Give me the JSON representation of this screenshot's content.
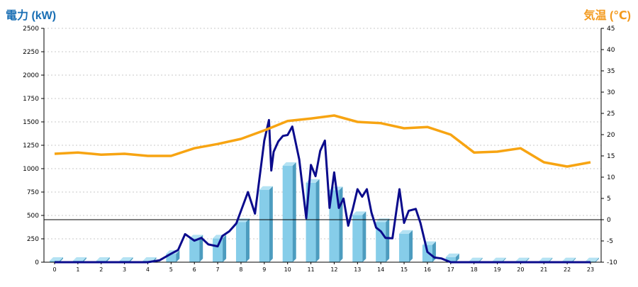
{
  "chart_data": {
    "type": "bar",
    "y_left_label": "電力 (kW)",
    "y_right_label": "気温 (℃)",
    "categories": [
      "0",
      "1",
      "2",
      "3",
      "4",
      "5",
      "6",
      "7",
      "8",
      "9",
      "10",
      "11",
      "12",
      "13",
      "14",
      "15",
      "16",
      "17",
      "18",
      "19",
      "20",
      "21",
      "22",
      "23"
    ],
    "ylim_left": [
      0,
      2500
    ],
    "yticks_left": [
      "0",
      "250",
      "500",
      "750",
      "1000",
      "1250",
      "1500",
      "1750",
      "2000",
      "2250",
      "2500"
    ],
    "ylim_right": [
      -10,
      45
    ],
    "yticks_right": [
      "-10",
      "-5",
      "0",
      "5",
      "10",
      "15",
      "20",
      "25",
      "30",
      "35",
      "40",
      "45"
    ],
    "reference_line_right": 0,
    "grid": "horizontal dotted",
    "series": [
      {
        "kind": "bar",
        "color": "#86cde9",
        "values": [
          15,
          15,
          15,
          15,
          15,
          90,
          255,
          255,
          430,
          775,
          1030,
          850,
          770,
          505,
          430,
          305,
          185,
          55,
          10,
          10,
          10,
          10,
          10,
          10
        ]
      },
      {
        "kind": "line",
        "axis": "left",
        "color": "#0b0b8c",
        "x": [
          0,
          1,
          2,
          3,
          4,
          4.5,
          5,
          5.3,
          5.6,
          6,
          6.3,
          6.6,
          7,
          7.2,
          7.5,
          7.8,
          8,
          8.3,
          8.6,
          9,
          9.2,
          9.3,
          9.4,
          9.6,
          9.8,
          10,
          10.2,
          10.5,
          10.8,
          11,
          11.2,
          11.4,
          11.6,
          11.8,
          12,
          12.2,
          12.4,
          12.6,
          12.8,
          13,
          13.2,
          13.4,
          13.6,
          13.8,
          14,
          14.2,
          14.5,
          14.8,
          15,
          15.2,
          15.5,
          15.7,
          16,
          16.3,
          16.6,
          17,
          17.5,
          18,
          19,
          20,
          21,
          22,
          23
        ],
        "values": [
          0,
          0,
          0,
          0,
          0,
          20,
          90,
          130,
          300,
          230,
          260,
          190,
          170,
          280,
          330,
          415,
          550,
          750,
          520,
          1300,
          1520,
          980,
          1180,
          1290,
          1350,
          1360,
          1450,
          1100,
          470,
          1040,
          920,
          1190,
          1300,
          580,
          960,
          580,
          680,
          390,
          570,
          780,
          700,
          780,
          530,
          370,
          330,
          260,
          255,
          780,
          420,
          550,
          570,
          420,
          110,
          50,
          40,
          0,
          0,
          0,
          0,
          0,
          0,
          0,
          0
        ]
      },
      {
        "kind": "line",
        "axis": "right",
        "color": "#f7a412",
        "values": [
          15.5,
          15.8,
          15.3,
          15.5,
          15.0,
          15.0,
          16.8,
          17.8,
          19.0,
          21.0,
          23.2,
          23.8,
          24.5,
          23.0,
          22.7,
          21.5,
          21.8,
          20.0,
          15.8,
          16.0,
          16.8,
          13.5,
          12.5,
          13.5
        ]
      }
    ]
  }
}
